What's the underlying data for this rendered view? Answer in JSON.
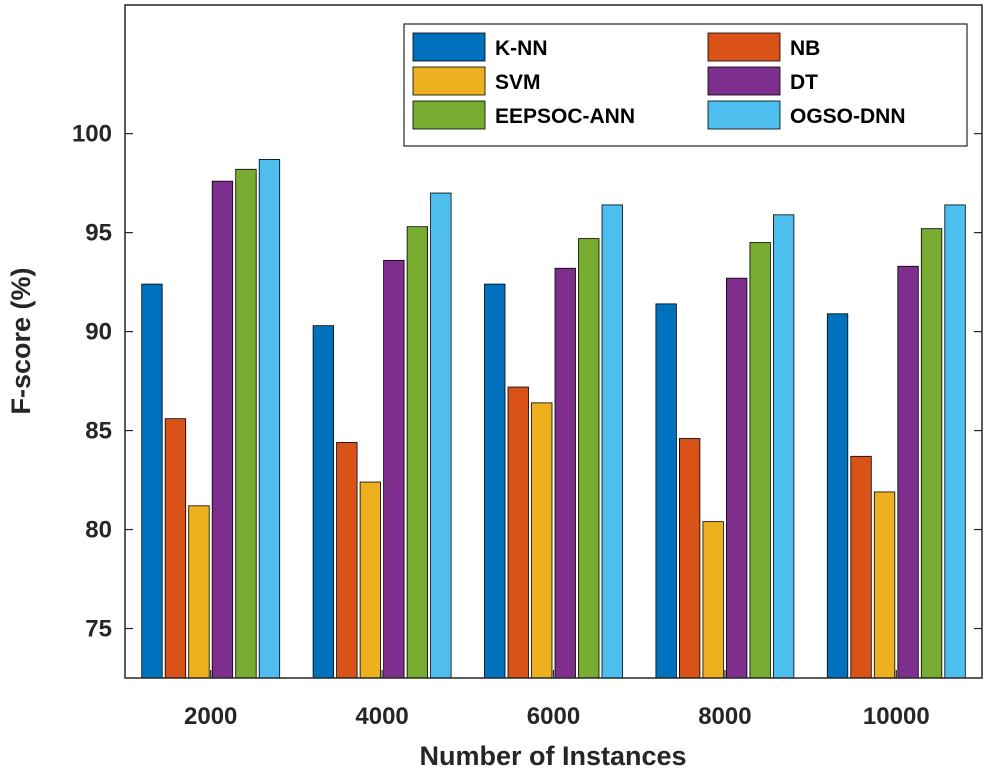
{
  "chart_data": {
    "type": "bar",
    "title": "",
    "xlabel": "Number of Instances",
    "ylabel": "F-score (%)",
    "categories": [
      "2000",
      "4000",
      "6000",
      "8000",
      "10000"
    ],
    "ylim": [
      72.5,
      106.5
    ],
    "yticks": [
      75,
      80,
      85,
      90,
      95,
      100
    ],
    "grid": false,
    "legend_position": "top-right",
    "series": [
      {
        "name": "K-NN",
        "color": "#0072BD",
        "values": [
          92.4,
          90.3,
          92.4,
          91.4,
          90.9
        ]
      },
      {
        "name": "NB",
        "color": "#D95319",
        "values": [
          85.6,
          84.4,
          87.2,
          84.6,
          83.7
        ]
      },
      {
        "name": "SVM",
        "color": "#EDB120",
        "values": [
          81.2,
          82.4,
          86.4,
          80.4,
          81.9
        ]
      },
      {
        "name": "DT",
        "color": "#7E2F8E",
        "values": [
          97.6,
          93.6,
          93.2,
          92.7,
          93.3
        ]
      },
      {
        "name": "EEPSOC-ANN",
        "color": "#77AC30",
        "values": [
          98.2,
          95.3,
          94.7,
          94.5,
          95.2
        ]
      },
      {
        "name": "OGSO-DNN",
        "color": "#4DBEEE",
        "values": [
          98.7,
          97.0,
          96.4,
          95.9,
          96.4
        ]
      }
    ]
  }
}
